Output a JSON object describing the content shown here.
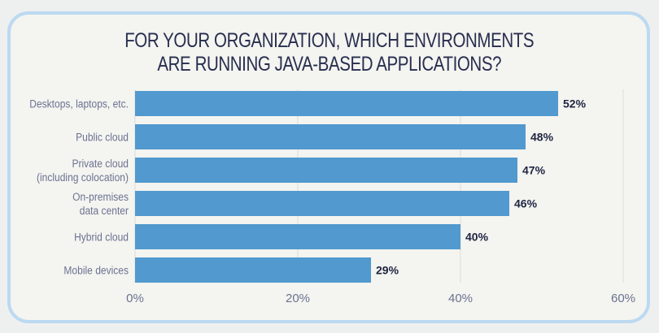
{
  "chart_data": {
    "type": "bar",
    "orientation": "horizontal",
    "title_lines": [
      "FOR YOUR ORGANIZATION, WHICH ENVIRONMENTS",
      "ARE RUNNING JAVA-BASED APPLICATIONS?"
    ],
    "categories": [
      [
        "Desktops, laptops, etc."
      ],
      [
        "Public cloud"
      ],
      [
        "Private cloud",
        "(including colocation)"
      ],
      [
        "On-premises",
        "data center"
      ],
      [
        "Hybrid cloud"
      ],
      [
        "Mobile devices"
      ]
    ],
    "values": [
      52,
      48,
      47,
      46,
      40,
      29
    ],
    "data_labels": [
      "52%",
      "48%",
      "47%",
      "46%",
      "40%",
      "29%"
    ],
    "xlim": [
      0,
      60
    ],
    "xticks": [
      0,
      20,
      40,
      60
    ],
    "xtick_labels": [
      "0%",
      "20%",
      "40%",
      "60%"
    ],
    "grid": true,
    "colors": {
      "bar": "#5199ce",
      "title": "#272e4f",
      "label": "#6b7291",
      "value": "#1f2542",
      "grid": "#dcdcdc",
      "frame": "#bcd9f1"
    }
  }
}
